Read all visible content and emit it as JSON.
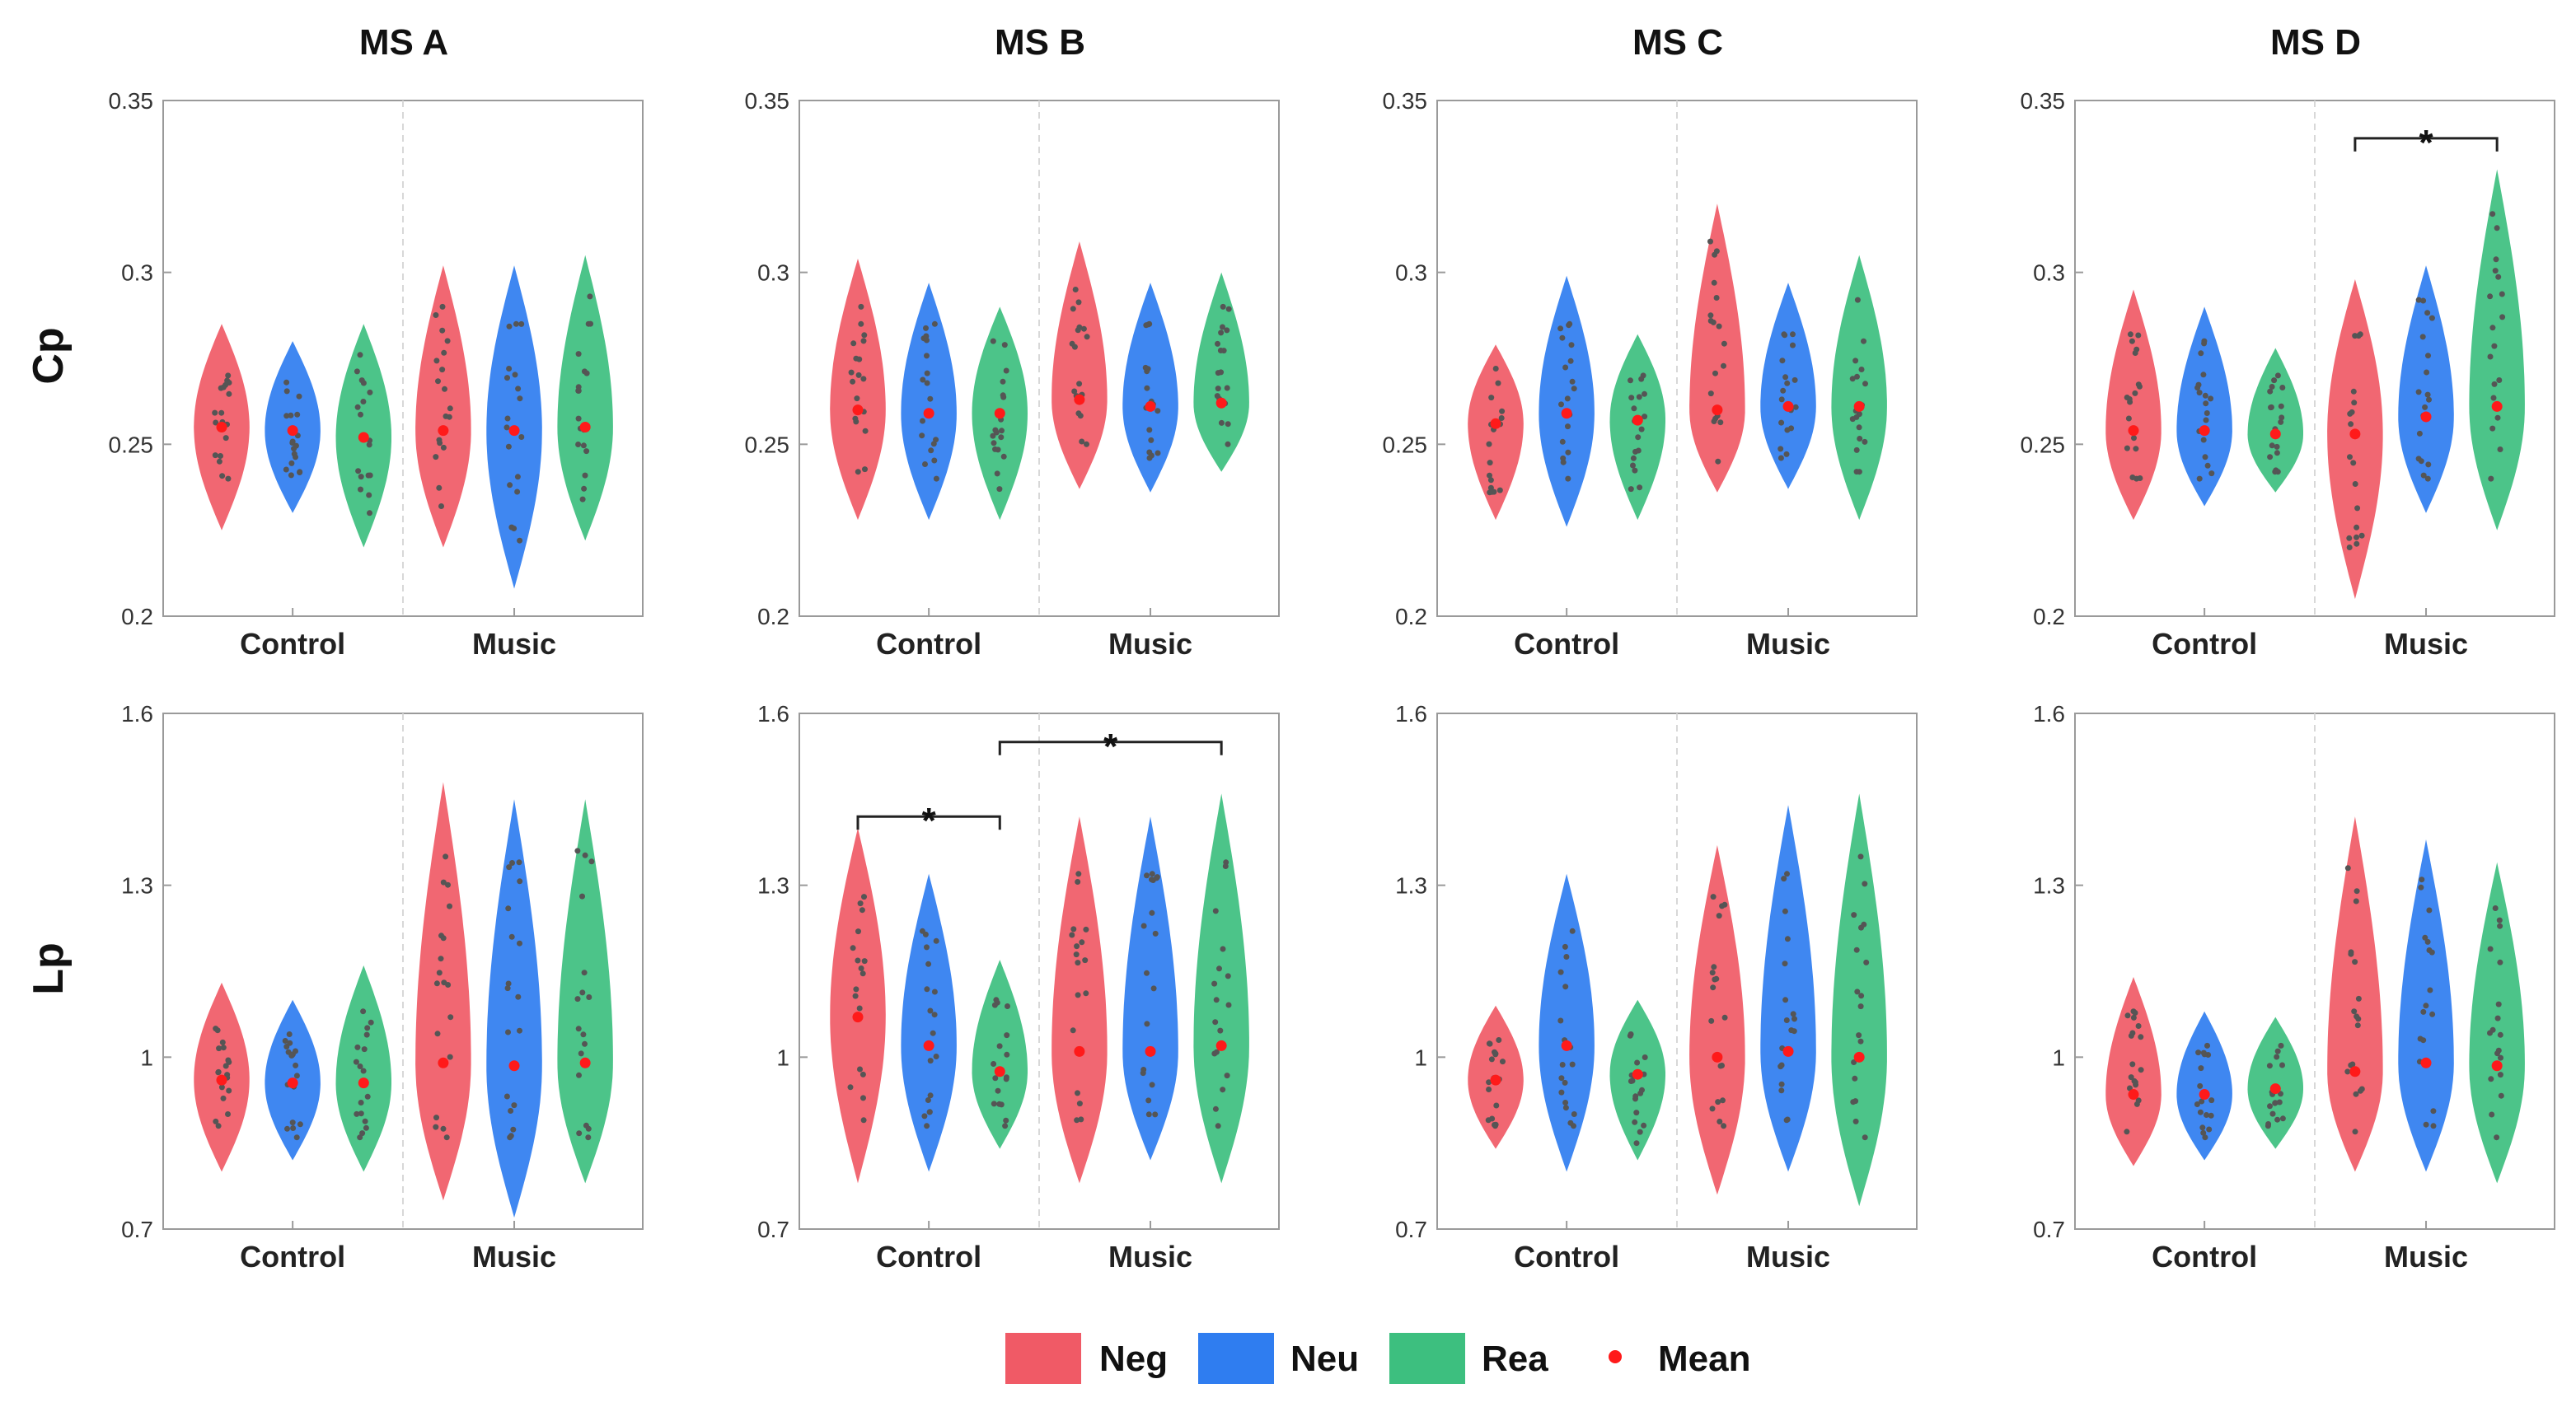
{
  "chart_data": {
    "type": "violin",
    "columns": [
      "MS A",
      "MS B",
      "MS C",
      "MS D"
    ],
    "rows": [
      {
        "label": "Cp",
        "ylim": [
          0.2,
          0.35
        ],
        "yticks": [
          "0.2",
          "0.25",
          "0.3",
          "0.35"
        ]
      },
      {
        "label": "Lp",
        "ylim": [
          0.7,
          1.6
        ],
        "yticks": [
          "0.7",
          "1",
          "1.3",
          "1.6"
        ]
      }
    ],
    "groups": [
      "Control",
      "Music"
    ],
    "conditions": [
      "Neg",
      "Neu",
      "Rea"
    ],
    "legend": {
      "items": [
        "Neg",
        "Neu",
        "Rea",
        "Mean"
      ],
      "position": "bottom-center"
    },
    "colors": {
      "Neg": "#f05a66",
      "Neu": "#2f7df0",
      "Rea": "#3dbf7f",
      "Mean": "#ff1a1a",
      "points": "#555555"
    },
    "panels": [
      {
        "row": "Cp",
        "column": "MS A",
        "series": [
          {
            "group": "Control",
            "condition": "Neg",
            "mean": 0.255,
            "min": 0.24,
            "max": 0.27,
            "lo": 0.225,
            "hi": 0.285
          },
          {
            "group": "Control",
            "condition": "Neu",
            "mean": 0.254,
            "min": 0.241,
            "max": 0.268,
            "lo": 0.23,
            "hi": 0.28
          },
          {
            "group": "Control",
            "condition": "Rea",
            "mean": 0.252,
            "min": 0.23,
            "max": 0.276,
            "lo": 0.22,
            "hi": 0.285
          },
          {
            "group": "Music",
            "condition": "Neg",
            "mean": 0.254,
            "min": 0.232,
            "max": 0.29,
            "lo": 0.22,
            "hi": 0.302
          },
          {
            "group": "Music",
            "condition": "Neu",
            "mean": 0.254,
            "min": 0.222,
            "max": 0.285,
            "lo": 0.208,
            "hi": 0.302
          },
          {
            "group": "Music",
            "condition": "Rea",
            "mean": 0.255,
            "min": 0.234,
            "max": 0.293,
            "lo": 0.222,
            "hi": 0.305
          }
        ]
      },
      {
        "row": "Cp",
        "column": "MS B",
        "series": [
          {
            "group": "Control",
            "condition": "Neg",
            "mean": 0.26,
            "min": 0.242,
            "max": 0.29,
            "lo": 0.228,
            "hi": 0.304
          },
          {
            "group": "Control",
            "condition": "Neu",
            "mean": 0.259,
            "min": 0.24,
            "max": 0.285,
            "lo": 0.228,
            "hi": 0.297
          },
          {
            "group": "Control",
            "condition": "Rea",
            "mean": 0.259,
            "min": 0.237,
            "max": 0.28,
            "lo": 0.228,
            "hi": 0.29
          },
          {
            "group": "Music",
            "condition": "Neg",
            "mean": 0.263,
            "min": 0.25,
            "max": 0.295,
            "lo": 0.237,
            "hi": 0.309
          },
          {
            "group": "Music",
            "condition": "Neu",
            "mean": 0.261,
            "min": 0.246,
            "max": 0.285,
            "lo": 0.236,
            "hi": 0.297
          },
          {
            "group": "Music",
            "condition": "Rea",
            "mean": 0.262,
            "min": 0.25,
            "max": 0.29,
            "lo": 0.242,
            "hi": 0.3
          }
        ]
      },
      {
        "row": "Cp",
        "column": "MS C",
        "series": [
          {
            "group": "Control",
            "condition": "Neg",
            "mean": 0.256,
            "min": 0.236,
            "max": 0.272,
            "lo": 0.228,
            "hi": 0.279
          },
          {
            "group": "Control",
            "condition": "Neu",
            "mean": 0.259,
            "min": 0.24,
            "max": 0.285,
            "lo": 0.226,
            "hi": 0.299
          },
          {
            "group": "Control",
            "condition": "Rea",
            "mean": 0.257,
            "min": 0.237,
            "max": 0.27,
            "lo": 0.228,
            "hi": 0.282
          },
          {
            "group": "Music",
            "condition": "Neg",
            "mean": 0.26,
            "min": 0.245,
            "max": 0.309,
            "lo": 0.236,
            "hi": 0.32
          },
          {
            "group": "Music",
            "condition": "Neu",
            "mean": 0.261,
            "min": 0.246,
            "max": 0.282,
            "lo": 0.237,
            "hi": 0.297
          },
          {
            "group": "Music",
            "condition": "Rea",
            "mean": 0.261,
            "min": 0.242,
            "max": 0.292,
            "lo": 0.228,
            "hi": 0.305
          }
        ]
      },
      {
        "row": "Cp",
        "column": "MS D",
        "series": [
          {
            "group": "Control",
            "condition": "Neg",
            "mean": 0.254,
            "min": 0.24,
            "max": 0.282,
            "lo": 0.228,
            "hi": 0.295
          },
          {
            "group": "Control",
            "condition": "Neu",
            "mean": 0.254,
            "min": 0.24,
            "max": 0.28,
            "lo": 0.232,
            "hi": 0.29
          },
          {
            "group": "Control",
            "condition": "Rea",
            "mean": 0.253,
            "min": 0.242,
            "max": 0.27,
            "lo": 0.236,
            "hi": 0.278
          },
          {
            "group": "Music",
            "condition": "Neg",
            "mean": 0.253,
            "min": 0.22,
            "max": 0.282,
            "lo": 0.205,
            "hi": 0.298
          },
          {
            "group": "Music",
            "condition": "Neu",
            "mean": 0.258,
            "min": 0.24,
            "max": 0.292,
            "lo": 0.23,
            "hi": 0.302
          },
          {
            "group": "Music",
            "condition": "Rea",
            "mean": 0.261,
            "min": 0.24,
            "max": 0.317,
            "lo": 0.225,
            "hi": 0.33
          }
        ]
      },
      {
        "row": "Lp",
        "column": "MS A",
        "series": [
          {
            "group": "Control",
            "condition": "Neg",
            "mean": 0.96,
            "min": 0.88,
            "max": 1.05,
            "lo": 0.8,
            "hi": 1.13
          },
          {
            "group": "Control",
            "condition": "Neu",
            "mean": 0.955,
            "min": 0.86,
            "max": 1.04,
            "lo": 0.82,
            "hi": 1.1
          },
          {
            "group": "Control",
            "condition": "Rea",
            "mean": 0.955,
            "min": 0.86,
            "max": 1.08,
            "lo": 0.8,
            "hi": 1.16
          },
          {
            "group": "Music",
            "condition": "Neg",
            "mean": 0.99,
            "min": 0.86,
            "max": 1.35,
            "lo": 0.75,
            "hi": 1.48
          },
          {
            "group": "Music",
            "condition": "Neu",
            "mean": 0.985,
            "min": 0.86,
            "max": 1.34,
            "lo": 0.72,
            "hi": 1.45
          },
          {
            "group": "Music",
            "condition": "Rea",
            "mean": 0.99,
            "min": 0.86,
            "max": 1.36,
            "lo": 0.78,
            "hi": 1.45
          }
        ]
      },
      {
        "row": "Lp",
        "column": "MS B",
        "series": [
          {
            "group": "Control",
            "condition": "Neg",
            "mean": 1.07,
            "min": 0.89,
            "max": 1.28,
            "lo": 0.78,
            "hi": 1.4
          },
          {
            "group": "Control",
            "condition": "Neu",
            "mean": 1.02,
            "min": 0.88,
            "max": 1.22,
            "lo": 0.8,
            "hi": 1.32
          },
          {
            "group": "Control",
            "condition": "Rea",
            "mean": 0.975,
            "min": 0.88,
            "max": 1.1,
            "lo": 0.84,
            "hi": 1.17
          },
          {
            "group": "Music",
            "condition": "Neg",
            "mean": 1.01,
            "min": 0.89,
            "max": 1.32,
            "lo": 0.78,
            "hi": 1.42
          },
          {
            "group": "Music",
            "condition": "Neu",
            "mean": 1.01,
            "min": 0.9,
            "max": 1.32,
            "lo": 0.82,
            "hi": 1.42
          },
          {
            "group": "Music",
            "condition": "Rea",
            "mean": 1.02,
            "min": 0.88,
            "max": 1.34,
            "lo": 0.78,
            "hi": 1.46
          }
        ]
      },
      {
        "row": "Lp",
        "column": "MS C",
        "series": [
          {
            "group": "Control",
            "condition": "Neg",
            "mean": 0.96,
            "min": 0.88,
            "max": 1.03,
            "lo": 0.84,
            "hi": 1.09
          },
          {
            "group": "Control",
            "condition": "Neu",
            "mean": 1.02,
            "min": 0.88,
            "max": 1.22,
            "lo": 0.8,
            "hi": 1.32
          },
          {
            "group": "Control",
            "condition": "Rea",
            "mean": 0.97,
            "min": 0.85,
            "max": 1.04,
            "lo": 0.82,
            "hi": 1.1
          },
          {
            "group": "Music",
            "condition": "Neg",
            "mean": 1.0,
            "min": 0.88,
            "max": 1.28,
            "lo": 0.76,
            "hi": 1.37
          },
          {
            "group": "Music",
            "condition": "Neu",
            "mean": 1.01,
            "min": 0.89,
            "max": 1.32,
            "lo": 0.8,
            "hi": 1.44
          },
          {
            "group": "Music",
            "condition": "Rea",
            "mean": 1.0,
            "min": 0.86,
            "max": 1.35,
            "lo": 0.74,
            "hi": 1.46
          }
        ]
      },
      {
        "row": "Lp",
        "column": "MS D",
        "series": [
          {
            "group": "Control",
            "condition": "Neg",
            "mean": 0.935,
            "min": 0.87,
            "max": 1.08,
            "lo": 0.81,
            "hi": 1.14
          },
          {
            "group": "Control",
            "condition": "Neu",
            "mean": 0.935,
            "min": 0.86,
            "max": 1.02,
            "lo": 0.82,
            "hi": 1.08
          },
          {
            "group": "Control",
            "condition": "Rea",
            "mean": 0.945,
            "min": 0.88,
            "max": 1.02,
            "lo": 0.84,
            "hi": 1.07
          },
          {
            "group": "Music",
            "condition": "Neg",
            "mean": 0.975,
            "min": 0.87,
            "max": 1.33,
            "lo": 0.8,
            "hi": 1.42
          },
          {
            "group": "Music",
            "condition": "Neu",
            "mean": 0.99,
            "min": 0.88,
            "max": 1.31,
            "lo": 0.8,
            "hi": 1.38
          },
          {
            "group": "Music",
            "condition": "Rea",
            "mean": 0.985,
            "min": 0.86,
            "max": 1.26,
            "lo": 0.78,
            "hi": 1.34
          }
        ]
      }
    ],
    "significance": [
      {
        "row": "Cp",
        "column": "MS D",
        "from": {
          "group": "Music",
          "condition": "Neg"
        },
        "to": {
          "group": "Music",
          "condition": "Rea"
        },
        "label": "*",
        "y": 0.339
      },
      {
        "row": "Lp",
        "column": "MS B",
        "from": {
          "group": "Control",
          "condition": "Neg"
        },
        "to": {
          "group": "Control",
          "condition": "Rea"
        },
        "label": "*",
        "y": 1.42
      },
      {
        "row": "Lp",
        "column": "MS B",
        "from": {
          "group": "Control",
          "condition": "Rea"
        },
        "to": {
          "group": "Music",
          "condition": "Rea"
        },
        "label": "*",
        "y": 1.55
      }
    ]
  }
}
